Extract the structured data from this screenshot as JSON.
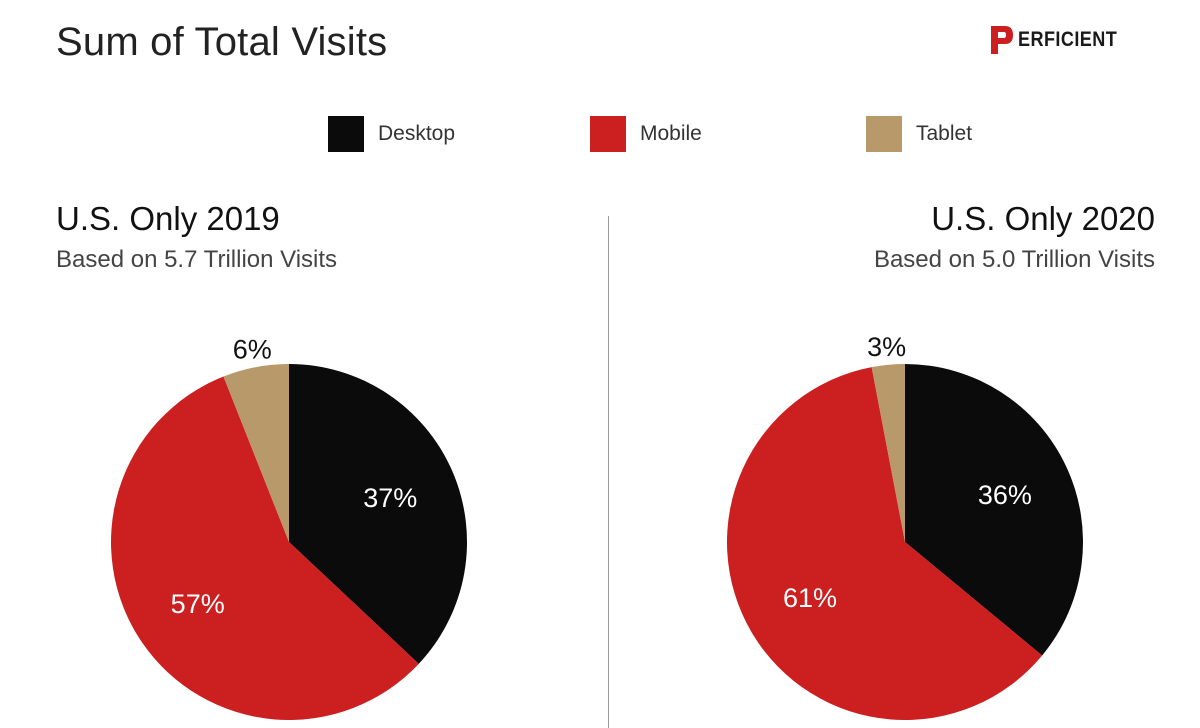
{
  "header": {
    "title": "Sum of Total Visits",
    "logo_text": "ERFICIENT"
  },
  "colors": {
    "desktop": "#0b0b0b",
    "mobile": "#cb1f20",
    "tablet": "#b8996a"
  },
  "legend": [
    {
      "label": "Desktop",
      "color": "#0b0b0b"
    },
    {
      "label": "Mobile",
      "color": "#cb1f20"
    },
    {
      "label": "Tablet",
      "color": "#b8996a"
    }
  ],
  "chart_data": [
    {
      "type": "pie",
      "title": "U.S. Only 2019",
      "subtitle": "Based on 5.7 Trillion Visits",
      "slices": [
        {
          "label": "Desktop",
          "value": 37,
          "display": "37%"
        },
        {
          "label": "Mobile",
          "value": 57,
          "display": "57%"
        },
        {
          "label": "Tablet",
          "value": 6,
          "display": "6%"
        }
      ]
    },
    {
      "type": "pie",
      "title": "U.S. Only 2020",
      "subtitle": "Based on 5.0 Trillion Visits",
      "slices": [
        {
          "label": "Desktop",
          "value": 36,
          "display": "36%"
        },
        {
          "label": "Mobile",
          "value": 61,
          "display": "61%"
        },
        {
          "label": "Tablet",
          "value": 3,
          "display": "3%"
        }
      ]
    }
  ]
}
